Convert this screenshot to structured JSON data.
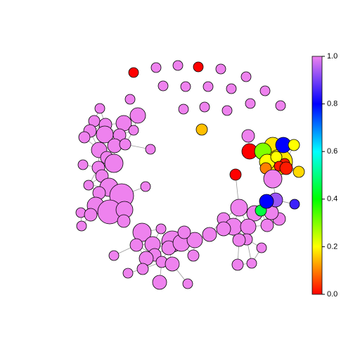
{
  "chart_data": {
    "type": "network",
    "node_values": [
      0,
      1,
      1,
      0,
      1,
      1,
      1,
      1,
      1,
      1,
      1,
      1,
      1,
      1,
      1,
      1,
      1,
      0.15,
      1,
      1,
      1,
      1,
      1,
      1,
      1,
      1,
      1,
      1,
      1,
      1,
      1,
      1,
      1,
      1,
      1,
      1,
      1,
      1,
      1,
      1,
      1,
      1,
      1,
      1,
      1,
      1,
      1,
      1,
      1,
      1,
      1,
      1,
      1,
      1,
      1,
      1,
      1,
      1,
      1,
      1,
      1,
      1,
      1,
      1,
      1,
      1,
      1,
      1,
      1,
      1,
      1,
      1,
      1,
      1,
      1,
      1,
      1,
      1,
      1,
      1,
      1,
      1,
      1,
      0.45,
      1,
      0,
      0,
      0.18,
      0.3,
      0.18,
      0.2,
      0.2,
      0.8,
      0.2,
      0.02,
      0.02,
      0.02,
      0.1,
      0.17,
      1,
      0.93,
      0.8,
      0.85,
      0.6
    ],
    "colorscale": [
      "#FF0000",
      "#FFFF00",
      "#00FF00",
      "#00FFFF",
      "#0000FF",
      "#EE82EE"
    ],
    "clim": [
      0,
      1
    ],
    "cticks": [
      {
        "value": 0,
        "label": "0.0"
      },
      {
        "value": 0.2,
        "label": "0.2"
      },
      {
        "value": 0.4,
        "label": "0.4"
      },
      {
        "value": 0.6,
        "label": "0.6"
      },
      {
        "value": 0.8,
        "label": "0.8"
      },
      {
        "value": 1,
        "label": "1.0"
      }
    ]
  }
}
